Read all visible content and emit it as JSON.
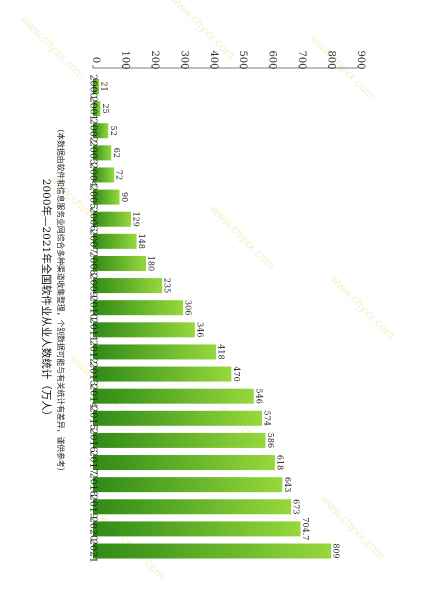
{
  "watermark": "www.chyxx.com",
  "chart_data": {
    "type": "bar",
    "orientation": "horizontal-bars-rotated-page",
    "title": "2000年—2021年全国软件业从业人数统计（万人）",
    "note": "（本数据由软件和信息服务业网综合多种渠道收集整理，个别数据可能与有关统计有差异，谨供参考）",
    "categories": [
      "2000",
      "2001",
      "2002",
      "2003",
      "2004",
      "2005",
      "2006",
      "2007",
      "2008",
      "2009",
      "2010",
      "2011",
      "2012",
      "2013",
      "2014",
      "2015",
      "2016",
      "2017",
      "2018",
      "2019",
      "2020",
      "2021"
    ],
    "values": [
      21,
      25,
      52,
      62,
      72,
      90,
      129,
      148,
      180,
      235,
      306,
      346,
      418,
      470,
      546,
      574,
      586,
      618,
      643,
      673,
      704.7,
      809
    ],
    "value_labels": [
      "21",
      "25",
      "52",
      "62",
      "72",
      "90",
      "129",
      "148",
      "180",
      "235",
      "306",
      "346",
      "418",
      "470",
      "546",
      "574",
      "586",
      "618",
      "643",
      "673",
      "704.7",
      "809"
    ],
    "axis_ticks": [
      "0",
      "100",
      "200",
      "300",
      "400",
      "500",
      "600",
      "700",
      "800",
      "900"
    ],
    "xlim": [
      0,
      900
    ],
    "bar_gradient": [
      "#2f8a16",
      "#96d83c"
    ],
    "grid": false
  }
}
